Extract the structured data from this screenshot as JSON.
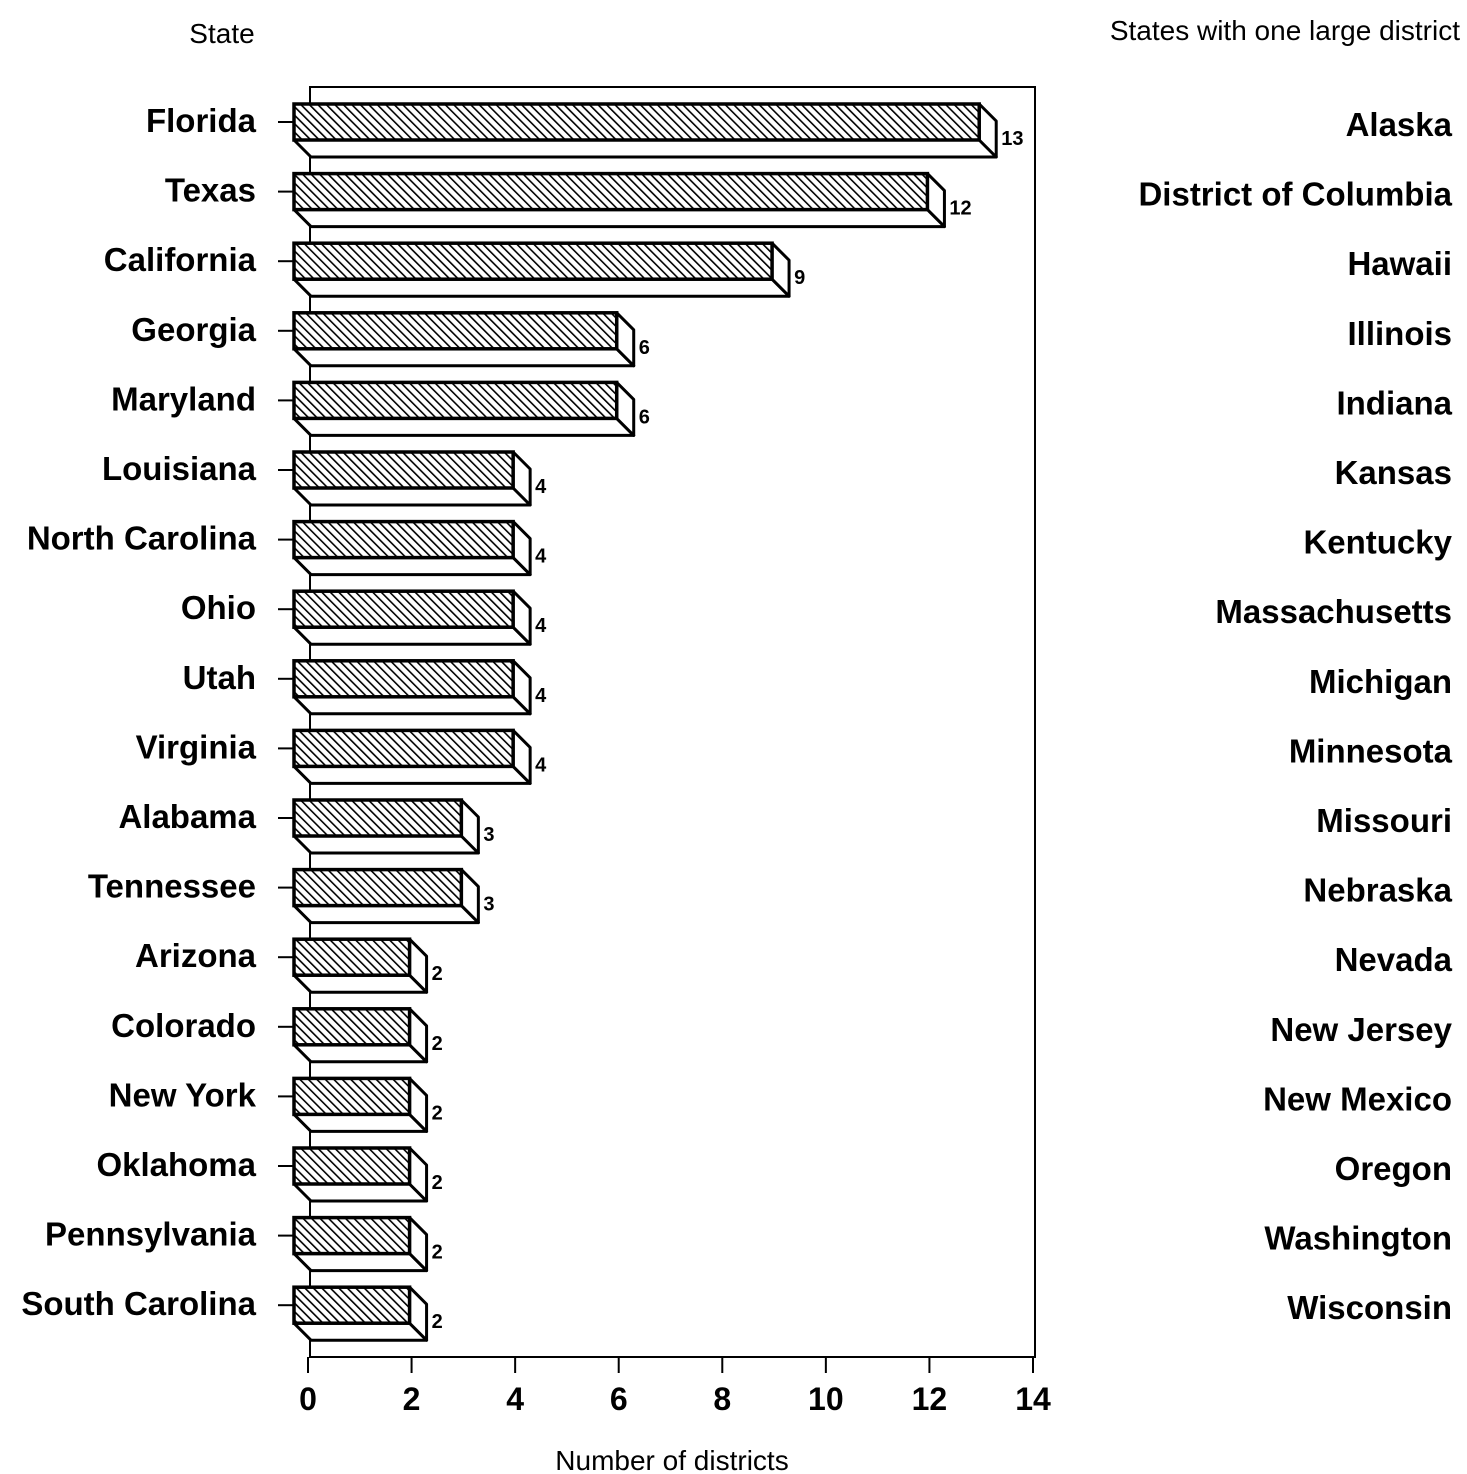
{
  "chart_data": {
    "type": "bar",
    "orientation": "horizontal",
    "ylabel": "State",
    "xlabel": "Number of districts",
    "xlim": [
      0,
      14
    ],
    "x_ticks": [
      "0",
      "2",
      "4",
      "6",
      "8",
      "10",
      "12",
      "14"
    ],
    "categories": [
      "Florida",
      "Texas",
      "California",
      "Georgia",
      "Maryland",
      "Louisiana",
      "North Carolina",
      "Ohio",
      "Utah",
      "Virginia",
      "Alabama",
      "Tennessee",
      "Arizona",
      "Colorado",
      "New York",
      "Oklahoma",
      "Pennsylvania",
      "South Carolina"
    ],
    "values": [
      13,
      12,
      9,
      6,
      6,
      4,
      4,
      4,
      4,
      4,
      3,
      3,
      2,
      2,
      2,
      2,
      2,
      2
    ],
    "data_labels": [
      "13",
      "12",
      "9",
      "6",
      "6",
      "4",
      "4",
      "4",
      "4",
      "4",
      "3",
      "3",
      "2",
      "2",
      "2",
      "2",
      "2",
      "2"
    ],
    "grid": false
  },
  "side_list": {
    "title": "States with one large district",
    "items": [
      "Alaska",
      "District of Columbia",
      "Hawaii",
      "Illinois",
      "Indiana",
      "Kansas",
      "Kentucky",
      "Massachusetts",
      "Michigan",
      "Minnesota",
      "Missouri",
      "Nebraska",
      "Nevada",
      "New Jersey",
      "New Mexico",
      "Oregon",
      "Washington",
      "Wisconsin"
    ]
  }
}
